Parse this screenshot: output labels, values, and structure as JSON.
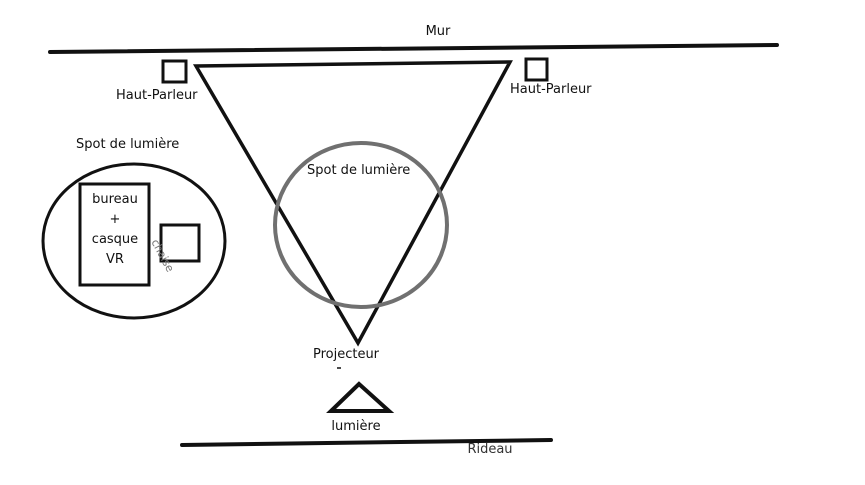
{
  "labels": {
    "wall": "Mur",
    "speaker_left": "Haut-Parleur",
    "speaker_right": "Haut-Parleur",
    "spot_left": "Spot de lumière",
    "spot_center": "Spot de lumière",
    "desk_line1": "bureau",
    "desk_line2": "+",
    "desk_line3": "casque",
    "desk_line4": "VR",
    "chair": "chaise",
    "projector": "Projecteur",
    "light": "lumière",
    "curtain": "Rideau"
  },
  "colors": {
    "ink": "#111111",
    "spot_ring": "#707070",
    "chair_text": "#777777"
  }
}
